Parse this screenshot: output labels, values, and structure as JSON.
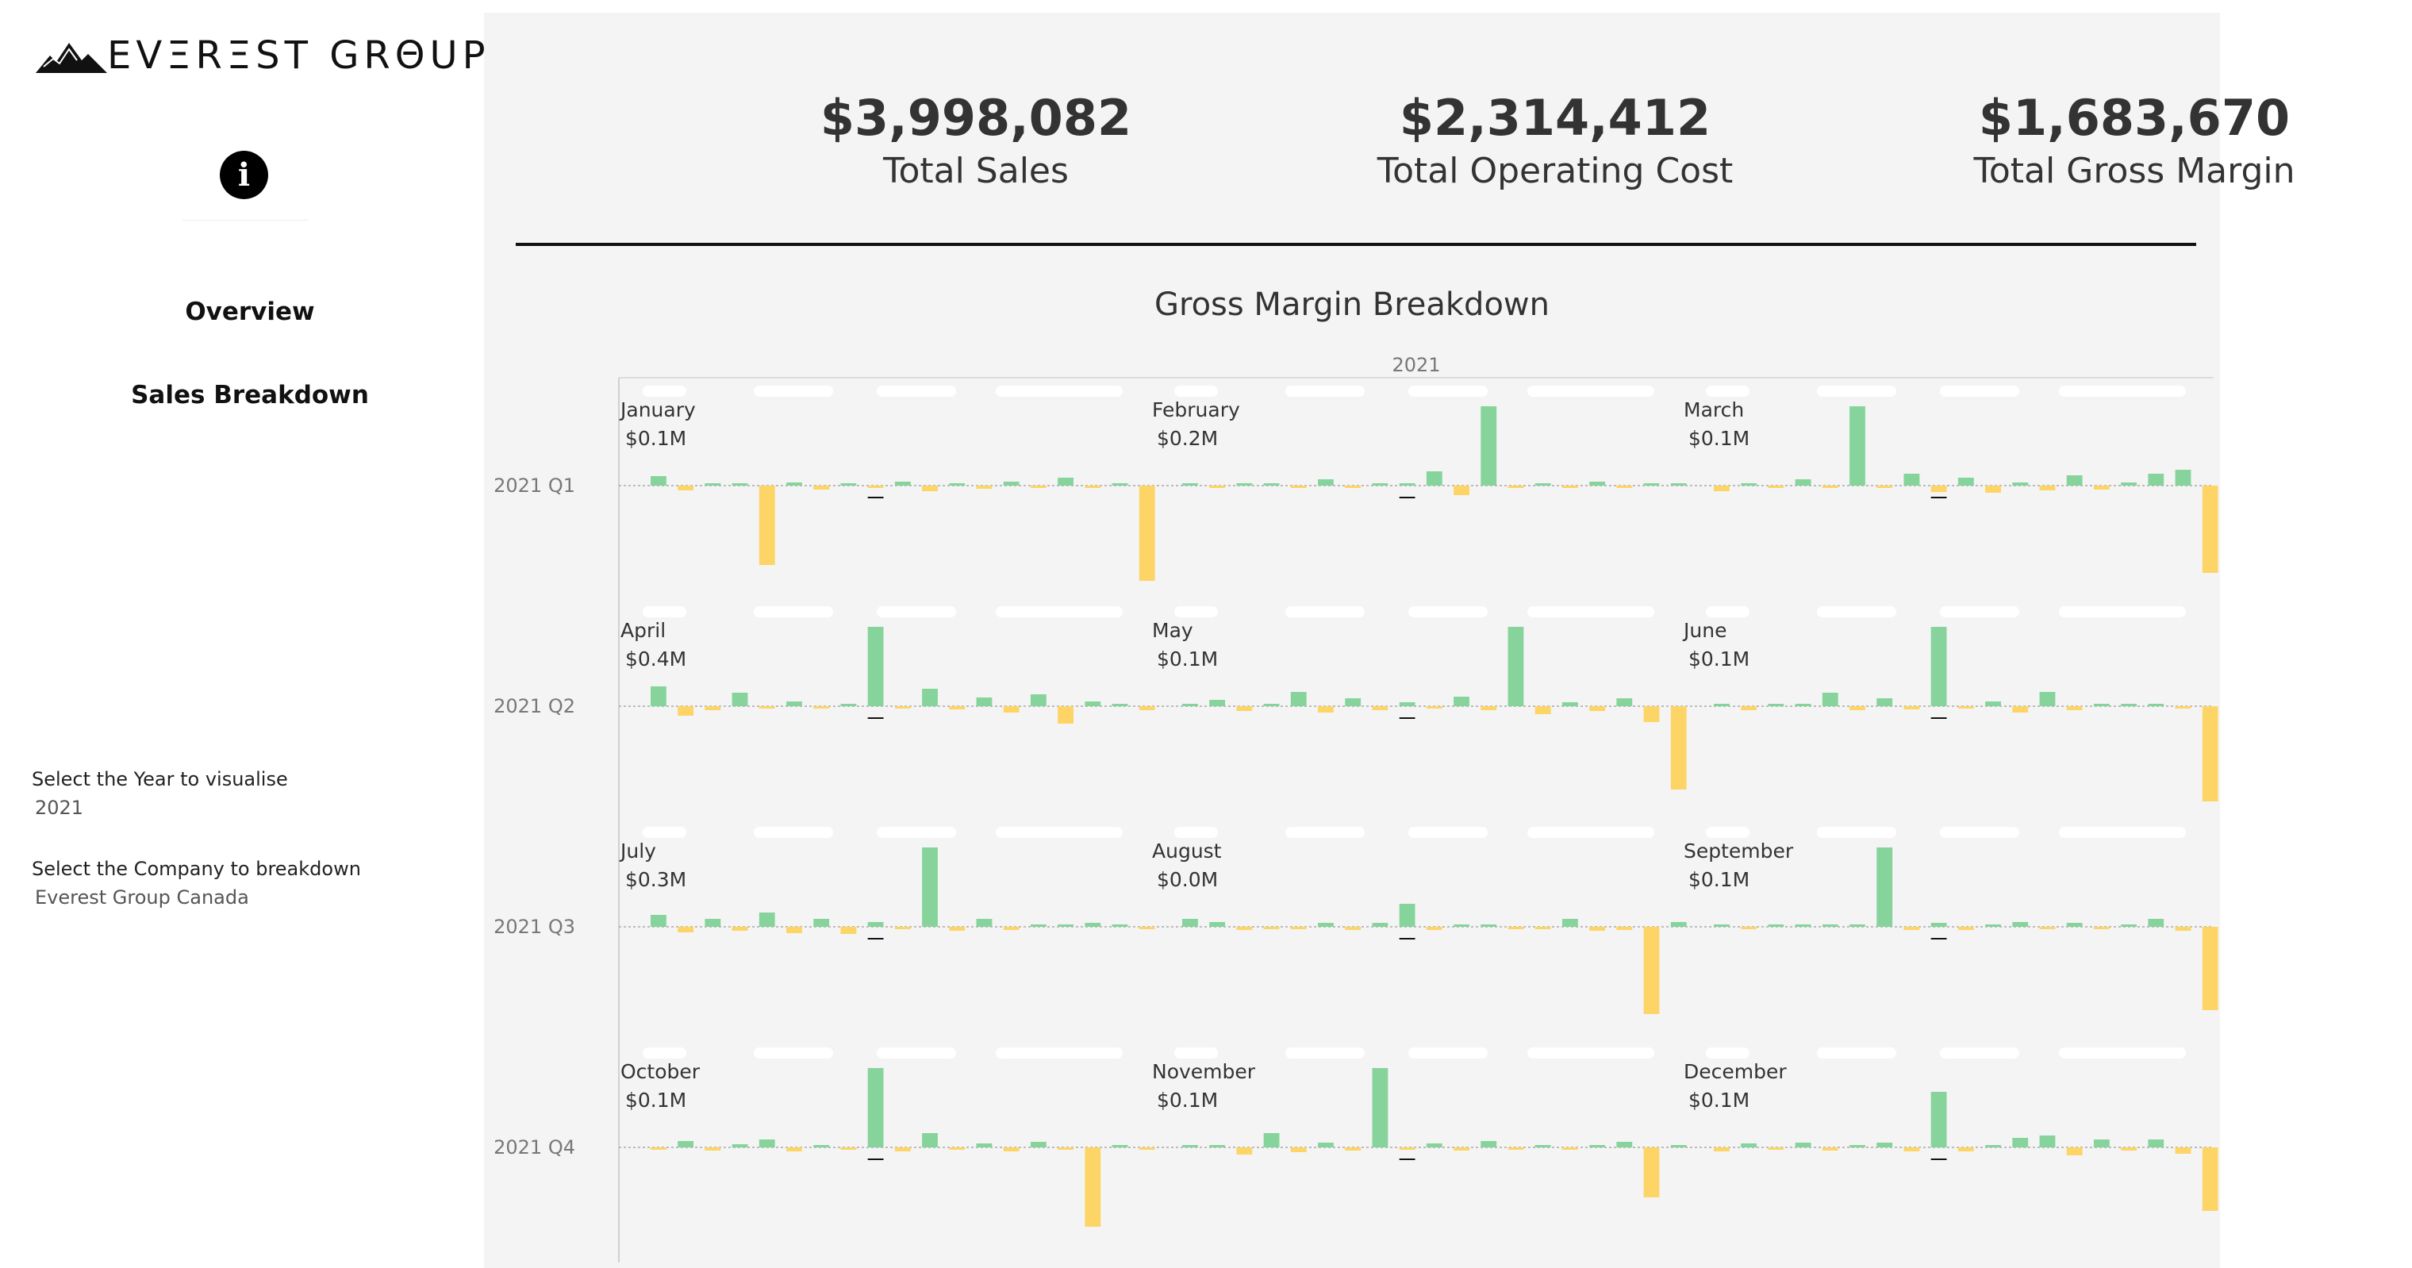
{
  "logo": {
    "text": "EVΞRΞST GRΘUP"
  },
  "info_icon": "info-circle-icon",
  "nav": {
    "overview": "Overview",
    "sales_breakdown": "Sales Breakdown"
  },
  "filters": {
    "year_label": "Select the Year to visualise",
    "year_value": "2021",
    "company_label": "Select the Company to breakdown",
    "company_value": "Everest Group Canada"
  },
  "kpis": [
    {
      "value": "$3,998,082",
      "label": "Total Sales"
    },
    {
      "value": "$2,314,412",
      "label": "Total Operating Cost"
    },
    {
      "value": "$1,683,670",
      "label": "Total Gross Margin"
    }
  ],
  "colors": {
    "positive": "#86d49c",
    "negative": "#fdd466",
    "total": "#111111",
    "page_bg": "#f4f4f4"
  },
  "chart_data": {
    "type": "bar",
    "title": "Gross Margin Breakdown",
    "column_header": "2021",
    "rows": [
      "2021 Q1",
      "2021 Q2",
      "2021 Q3",
      "2021 Q4"
    ],
    "months": [
      {
        "name": "January",
        "total": "$0.1M",
        "bars": [
          0.12,
          -0.06,
          0.02,
          0.03,
          -1.0,
          0.04,
          -0.05,
          0.03,
          -0.02,
          0.05,
          -0.07,
          0.02,
          -0.04,
          0.05,
          -0.03,
          0.1,
          -0.02,
          0.0,
          -1.2
        ]
      },
      {
        "name": "February",
        "total": "$0.2M",
        "bars": [
          0.02,
          -0.03,
          0.01,
          0.02,
          -0.02,
          0.08,
          -0.03,
          0.0,
          0.0,
          0.18,
          -0.12,
          1.0,
          -0.02,
          0.02,
          -0.01,
          0.05,
          -0.03,
          0.02,
          0.01
        ]
      },
      {
        "name": "March",
        "total": "$0.1M",
        "bars": [
          -0.07,
          0.02,
          -0.03,
          0.08,
          -0.02,
          1.0,
          -0.02,
          0.15,
          -0.08,
          0.1,
          -0.09,
          0.04,
          -0.06,
          0.13,
          -0.05,
          0.04,
          0.15,
          0.2,
          -1.1
        ]
      },
      {
        "name": "April",
        "total": "$0.4M",
        "bars": [
          0.25,
          -0.12,
          -0.05,
          0.17,
          -0.02,
          0.06,
          -0.02,
          0.03,
          1.0,
          -0.03,
          0.22,
          -0.04,
          0.11,
          -0.08,
          0.15,
          -0.22,
          0.06,
          0.03,
          -0.05
        ]
      },
      {
        "name": "May",
        "total": "$0.1M",
        "bars": [
          0.03,
          0.08,
          -0.06,
          0.02,
          0.18,
          -0.08,
          0.1,
          -0.05,
          0.05,
          -0.02,
          0.12,
          -0.05,
          1.0,
          -0.1,
          0.05,
          -0.06,
          0.1,
          -0.2,
          -1.05
        ]
      },
      {
        "name": "June",
        "total": "$0.1M",
        "bars": [
          0.03,
          -0.05,
          0.02,
          0.03,
          0.17,
          -0.05,
          0.1,
          -0.04,
          1.0,
          -0.02,
          0.06,
          -0.08,
          0.18,
          -0.05,
          0.02,
          0.01,
          0.01,
          -0.02,
          -1.2
        ]
      },
      {
        "name": "July",
        "total": "$0.3M",
        "bars": [
          0.15,
          -0.07,
          0.1,
          -0.05,
          0.18,
          -0.08,
          0.1,
          -0.09,
          0.06,
          -0.03,
          1.0,
          -0.05,
          0.1,
          -0.04,
          0.02,
          0.03,
          0.05,
          0.0,
          -0.02
        ]
      },
      {
        "name": "August",
        "total": "$0.0M",
        "bars": [
          0.1,
          0.06,
          -0.04,
          -0.03,
          -0.02,
          0.05,
          -0.04,
          0.05,
          0.29,
          -0.04,
          0.02,
          0.02,
          -0.02,
          -0.03,
          0.1,
          -0.05,
          -0.04,
          -1.1,
          0.06
        ]
      },
      {
        "name": "September",
        "total": "$0.1M",
        "bars": [
          0.03,
          -0.03,
          0.02,
          0.02,
          0.01,
          0.02,
          1.0,
          -0.04,
          0.05,
          -0.04,
          0.01,
          0.06,
          -0.03,
          0.05,
          -0.02,
          0.01,
          0.1,
          -0.05,
          -1.05
        ]
      },
      {
        "name": "October",
        "total": "$0.1M",
        "bars": [
          -0.03,
          0.08,
          -0.04,
          0.04,
          0.1,
          -0.05,
          0.03,
          -0.02,
          1.0,
          -0.05,
          0.18,
          -0.03,
          0.05,
          -0.05,
          0.07,
          -0.03,
          -1.0,
          0.02,
          -0.03
        ]
      },
      {
        "name": "November",
        "total": "$0.1M",
        "bars": [
          0.02,
          0.03,
          -0.09,
          0.18,
          -0.06,
          0.06,
          -0.04,
          1.0,
          -0.03,
          0.05,
          -0.04,
          0.08,
          -0.03,
          0.03,
          -0.02,
          0.02,
          0.07,
          -0.63,
          0.02
        ]
      },
      {
        "name": "December",
        "total": "$0.1M",
        "bars": [
          -0.05,
          0.05,
          -0.03,
          0.06,
          -0.04,
          0.02,
          0.06,
          -0.05,
          0.7,
          -0.05,
          0.02,
          0.12,
          0.15,
          -0.1,
          0.1,
          -0.04,
          0.1,
          -0.08,
          -0.8
        ]
      }
    ]
  }
}
